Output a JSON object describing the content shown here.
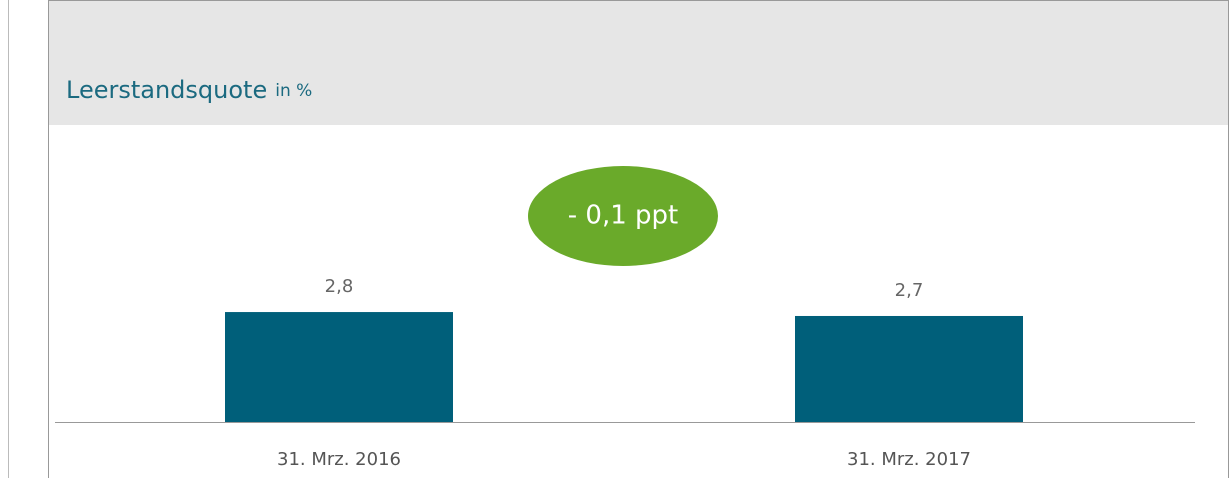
{
  "chart_data": {
    "type": "bar",
    "title": "Leerstandsquote",
    "subtitle": "in %",
    "annotation": "- 0,1 ppt",
    "categories": [
      "31. Mrz. 2016",
      "31. Mrz. 2017"
    ],
    "values": [
      2.8,
      2.7
    ],
    "value_labels": [
      "2,8",
      "2,7"
    ],
    "color": "#005f7a",
    "ylim": [
      0,
      7.5
    ]
  }
}
